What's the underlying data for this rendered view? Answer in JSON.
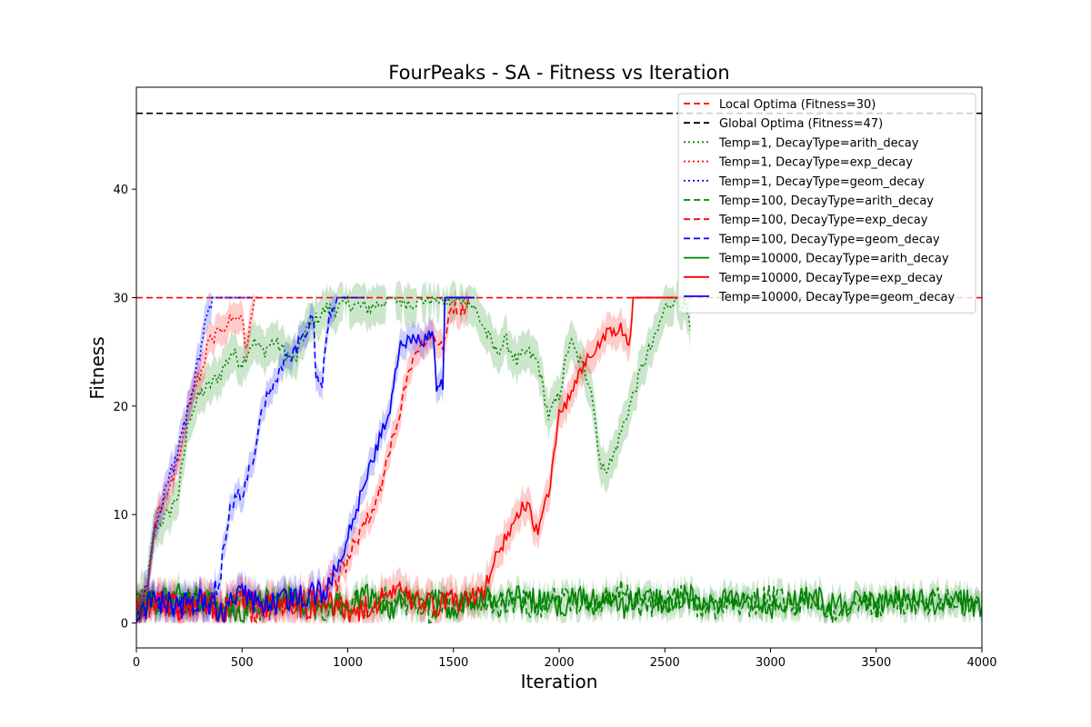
{
  "chart_data": {
    "type": "line",
    "title": "FourPeaks - SA - Fitness vs Iteration",
    "xlabel": "Iteration",
    "ylabel": "Fitness",
    "xlim": [
      0,
      4000
    ],
    "ylim": [
      -2.3,
      49.4
    ],
    "xticks": [
      "0",
      "500",
      "1000",
      "1500",
      "2000",
      "2500",
      "3000",
      "3500",
      "4000"
    ],
    "yticks": [
      "0",
      "10",
      "20",
      "30",
      "40"
    ],
    "grid": false,
    "legend_position": "top-right",
    "reference_lines": [
      {
        "name": "Local Optima (Fitness=30)",
        "y": 30,
        "color": "#ff0000",
        "dash": "dashed"
      },
      {
        "name": "Global Optima (Fitness=47)",
        "y": 47,
        "color": "#000000",
        "dash": "dashed"
      }
    ],
    "series": [
      {
        "name": "Temp=1, DecayType=arith_decay",
        "color": "#008000",
        "dash": "dotted",
        "x": [
          0,
          50,
          80,
          100,
          150,
          200,
          250,
          300,
          350,
          400,
          450,
          500,
          550,
          600,
          650,
          700,
          750,
          800,
          850,
          900,
          950,
          1000,
          1100,
          1200,
          1300,
          1400,
          1500,
          1550,
          1600,
          1650,
          1700,
          1750,
          1800,
          1850,
          1900,
          1950,
          2000,
          2050,
          2100,
          2150,
          2200,
          2250,
          2300,
          2350,
          2400,
          2450,
          2500,
          2550,
          2600,
          2620
        ],
        "y": [
          1,
          3,
          8,
          9,
          10,
          12,
          19,
          21,
          22,
          23,
          25,
          24,
          26,
          25,
          26,
          25,
          24,
          27,
          28,
          29,
          29,
          29.5,
          29,
          30,
          29.5,
          30,
          29.5,
          30,
          29,
          27,
          25,
          26,
          24,
          25,
          24,
          19,
          21,
          26,
          24,
          22,
          14,
          15,
          18,
          21,
          24,
          26,
          29,
          30,
          29,
          27
        ],
        "band": 1.8
      },
      {
        "name": "Temp=1, DecayType=exp_decay",
        "color": "#ff0000",
        "dash": "dotted",
        "x": [
          0,
          50,
          80,
          100,
          150,
          200,
          250,
          300,
          350,
          400,
          450,
          500,
          520,
          560,
          580
        ],
        "y": [
          1,
          3,
          8,
          10,
          12,
          15,
          20,
          23,
          26,
          27,
          28,
          28,
          25,
          30,
          30
        ],
        "band": 1.4
      },
      {
        "name": "Temp=1, DecayType=geom_decay",
        "color": "#0000ff",
        "dash": "dotted",
        "x": [
          0,
          50,
          80,
          100,
          150,
          200,
          250,
          300,
          330,
          360,
          400,
          450,
          500,
          550
        ],
        "y": [
          1,
          3,
          8,
          10,
          13,
          16,
          20,
          25,
          28,
          30,
          30,
          30,
          30,
          30
        ],
        "band": 1.4
      },
      {
        "name": "Temp=100, DecayType=arith_decay",
        "color": "#008000",
        "dash": "dashed",
        "x": [
          0,
          100,
          200,
          300,
          400,
          500,
          600,
          700,
          800,
          900,
          1000,
          1100,
          1200,
          1300,
          1400,
          1500,
          1600,
          1700,
          1800,
          1900,
          2000,
          2100,
          2200,
          2300,
          2400,
          2500,
          2600,
          2700,
          2800,
          2900,
          3000,
          3100,
          3200,
          3300,
          3400,
          3500,
          3600,
          3700,
          3800,
          3900,
          4000
        ],
        "y": [
          1,
          2,
          1.5,
          2.5,
          1.5,
          2,
          1,
          2.5,
          1.5,
          1,
          2,
          1.5,
          2.5,
          1.5,
          1,
          2,
          2.5,
          1.5,
          2,
          1.5,
          2.5,
          1.5,
          2,
          3,
          1.5,
          2,
          2.5,
          1,
          2,
          1.5,
          2.5,
          1.5,
          2,
          1,
          2.5,
          1.5,
          2,
          1.5,
          2.5,
          1.5,
          2
        ],
        "band": 1
      },
      {
        "name": "Temp=100, DecayType=exp_decay",
        "color": "#ff0000",
        "dash": "dashed",
        "x": [
          0,
          100,
          200,
          300,
          400,
          500,
          560,
          600,
          700,
          800,
          900,
          950,
          1000,
          1050,
          1100,
          1150,
          1200,
          1250,
          1300,
          1350,
          1400,
          1450,
          1480,
          1500,
          1550,
          1580
        ],
        "y": [
          1,
          2,
          1,
          2,
          1.5,
          2,
          0.5,
          1,
          1.5,
          2,
          3,
          4,
          6,
          8,
          10,
          12,
          16,
          20,
          24,
          26,
          27,
          25,
          29,
          29,
          29,
          30
        ],
        "band": 1.3
      },
      {
        "name": "Temp=100, DecayType=geom_decay",
        "color": "#0000ff",
        "dash": "dashed",
        "x": [
          0,
          100,
          200,
          300,
          350,
          380,
          400,
          420,
          450,
          500,
          550,
          600,
          650,
          700,
          750,
          800,
          840,
          850,
          880,
          900,
          920,
          950,
          1000,
          1050,
          1080
        ],
        "y": [
          1,
          2,
          1.5,
          2,
          2.5,
          3,
          5,
          8,
          11,
          12,
          15,
          20,
          22,
          24,
          25,
          27,
          28,
          22,
          22,
          27,
          29,
          30,
          30,
          30,
          30
        ],
        "band": 1.2
      },
      {
        "name": "Temp=10000, DecayType=arith_decay",
        "color": "#008000",
        "dash": "solid",
        "x": [
          0,
          100,
          200,
          300,
          400,
          500,
          600,
          700,
          800,
          900,
          1000,
          1100,
          1200,
          1300,
          1400,
          1500,
          1600,
          1700,
          1800,
          1900,
          2000,
          2100,
          2200,
          2300,
          2400,
          2500,
          2600,
          2700,
          2800,
          2900,
          3000,
          3100,
          3200,
          3300,
          3400,
          3500,
          3600,
          3700,
          3800,
          3900,
          4000
        ],
        "y": [
          1.5,
          2,
          2.5,
          1.5,
          2,
          1,
          2,
          2.5,
          1.5,
          2,
          1.5,
          2.5,
          1.5,
          2,
          2,
          1.5,
          2.5,
          2,
          2.5,
          2,
          1.5,
          2.5,
          2,
          1.5,
          2.5,
          2,
          2.5,
          1.5,
          2,
          2.5,
          1.5,
          2,
          2.5,
          1.5,
          2,
          1.5,
          2.5,
          2,
          1.5,
          2,
          1.5
        ],
        "band": 1
      },
      {
        "name": "Temp=10000, DecayType=exp_decay",
        "color": "#ff0000",
        "dash": "solid",
        "x": [
          0,
          100,
          200,
          300,
          400,
          500,
          600,
          700,
          800,
          900,
          1000,
          1100,
          1200,
          1300,
          1400,
          1500,
          1600,
          1650,
          1700,
          1750,
          1800,
          1850,
          1900,
          1950,
          2000,
          2050,
          2100,
          2150,
          2200,
          2250,
          2300,
          2330,
          2350,
          2400,
          2450,
          2500,
          2600
        ],
        "y": [
          1,
          2,
          1.5,
          2,
          1,
          2.5,
          1.5,
          2,
          1.5,
          2,
          1,
          1.5,
          3,
          2,
          1.5,
          2,
          2.5,
          3,
          6,
          8,
          10,
          11,
          8,
          12,
          19,
          21,
          23,
          25,
          26,
          27,
          27,
          25,
          30,
          30,
          30,
          30,
          30
        ],
        "band": 1.5
      },
      {
        "name": "Temp=10000, DecayType=geom_decay",
        "color": "#0000ff",
        "dash": "solid",
        "x": [
          0,
          100,
          200,
          300,
          400,
          500,
          600,
          700,
          800,
          900,
          950,
          1000,
          1050,
          1100,
          1150,
          1200,
          1250,
          1300,
          1350,
          1400,
          1420,
          1450,
          1460,
          1500,
          1550,
          1600
        ],
        "y": [
          1,
          2,
          1.5,
          2,
          1,
          2.5,
          1.5,
          2,
          2.5,
          3,
          5,
          8,
          11,
          14,
          17,
          20,
          26,
          26,
          26,
          27,
          22,
          22,
          30,
          30,
          30,
          30
        ],
        "band": 1.3
      }
    ]
  }
}
